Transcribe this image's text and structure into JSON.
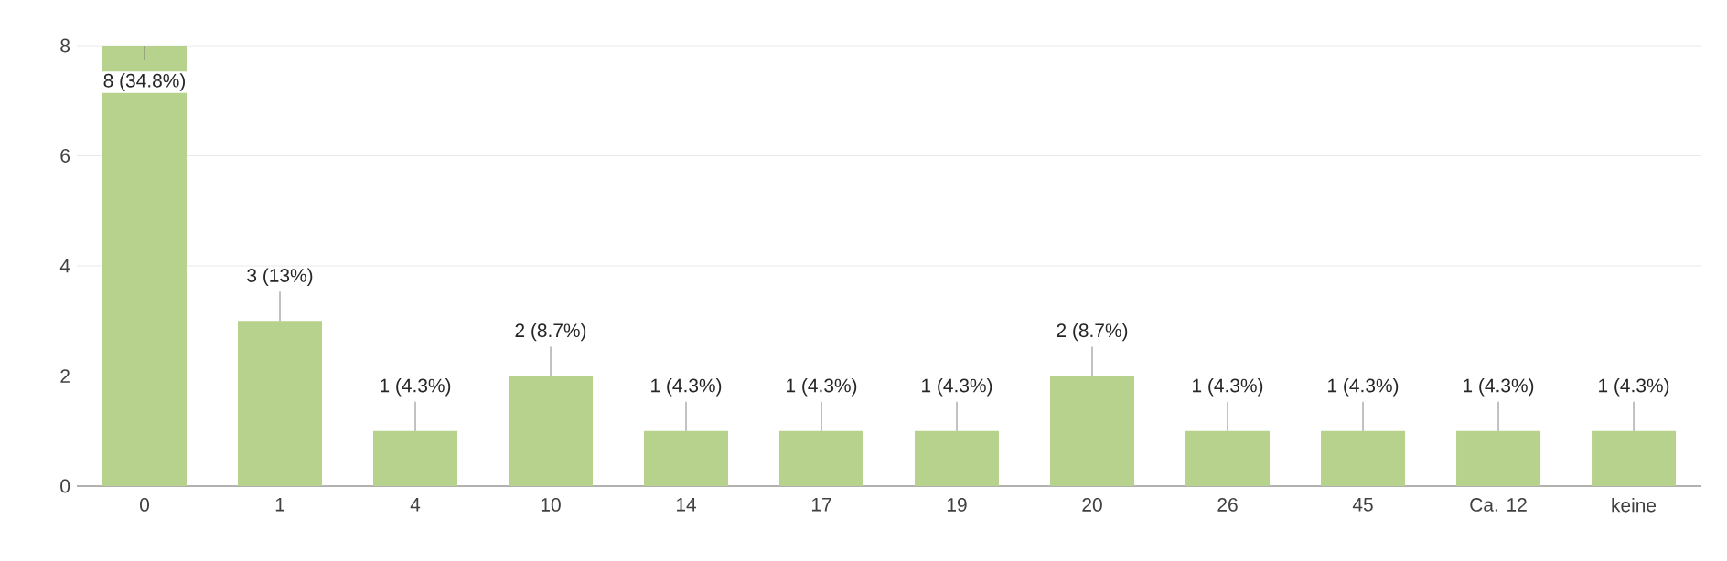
{
  "chart_data": {
    "type": "bar",
    "categories": [
      "0",
      "1",
      "4",
      "10",
      "14",
      "17",
      "19",
      "20",
      "26",
      "45",
      "Ca. 12",
      "keine"
    ],
    "values": [
      8,
      3,
      1,
      2,
      1,
      1,
      1,
      2,
      1,
      1,
      1,
      1
    ],
    "value_labels": [
      "8 (34.8%)",
      "3 (13%)",
      "1 (4.3%)",
      "2 (8.7%)",
      "1 (4.3%)",
      "1 (4.3%)",
      "1 (4.3%)",
      "2 (8.7%)",
      "1 (4.3%)",
      "1 (4.3%)",
      "1 (4.3%)",
      "1 (4.3%)"
    ],
    "color": "#b7d28d",
    "ylim": [
      0,
      8
    ],
    "yticks": [
      0,
      2,
      4,
      6,
      8
    ],
    "grid": "y"
  }
}
